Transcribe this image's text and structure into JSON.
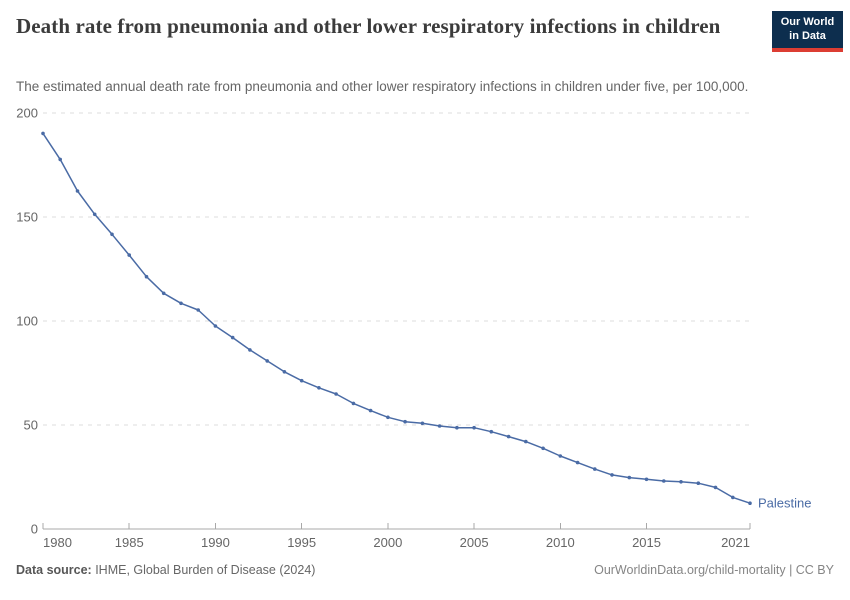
{
  "header": {
    "title": "Death rate from pneumonia and other lower respiratory infections in children",
    "subtitle": "The estimated annual death rate from pneumonia and other lower respiratory infections in children under five, per 100,000.",
    "logo": {
      "line1": "Our World",
      "line2": "in Data"
    }
  },
  "chart_data": {
    "type": "line",
    "title": "Death rate from pneumonia and other lower respiratory infections in children",
    "subtitle": "The estimated annual death rate from pneumonia and other lower respiratory infections in children under five, per 100,000.",
    "xlabel": "",
    "ylabel": "",
    "xlim": [
      1980,
      2021
    ],
    "ylim": [
      0,
      200
    ],
    "x_ticks": [
      1980,
      1985,
      1990,
      1995,
      2000,
      2005,
      2010,
      2015,
      2021
    ],
    "y_ticks": [
      0,
      50,
      100,
      150,
      200
    ],
    "grid": "horizontal-dashed",
    "legend_position": "end-of-line-label",
    "series": [
      {
        "name": "Palestine",
        "color": "#4a6ba5",
        "x": [
          1980,
          1981,
          1982,
          1983,
          1984,
          1985,
          1986,
          1987,
          1988,
          1989,
          1990,
          1991,
          1992,
          1993,
          1994,
          1995,
          1996,
          1997,
          1998,
          1999,
          2000,
          2001,
          2002,
          2003,
          2004,
          2005,
          2006,
          2007,
          2008,
          2009,
          2010,
          2011,
          2012,
          2013,
          2014,
          2015,
          2016,
          2017,
          2018,
          2019,
          2020,
          2021
        ],
        "values": [
          190.2,
          177.7,
          162.5,
          151.3,
          141.7,
          131.7,
          121.3,
          113.3,
          108.5,
          105.3,
          97.6,
          92.0,
          86.1,
          80.8,
          75.6,
          71.3,
          67.9,
          64.9,
          60.4,
          56.9,
          53.7,
          51.6,
          50.8,
          49.5,
          48.7,
          48.7,
          46.8,
          44.4,
          42.0,
          38.8,
          35.1,
          31.9,
          28.8,
          26.0,
          24.7,
          23.9,
          23.1,
          22.7,
          22.0,
          20.0,
          15.2,
          12.4
        ]
      }
    ],
    "colors": {
      "grid": "#dcdcdc",
      "axis_line": "#a8a8a8",
      "tick_text": "#666666"
    }
  },
  "footer": {
    "source_label": "Data source:",
    "source_value": " IHME, Global Burden of Disease (2024)",
    "attribution": "OurWorldinData.org/child-mortality | CC BY"
  }
}
